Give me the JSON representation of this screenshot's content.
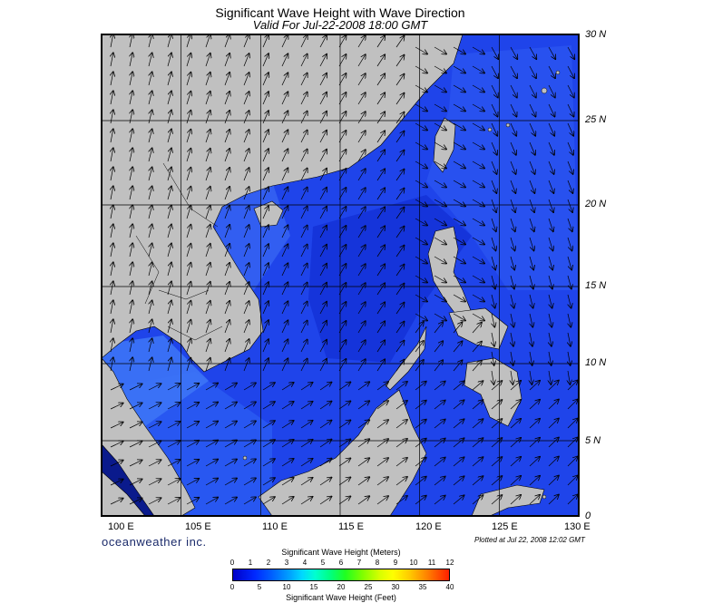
{
  "title": "Significant Wave Height with Wave Direction",
  "subtitle": "Valid For Jul-22-2008 18:00 GMT",
  "map": {
    "lat_labels": [
      "30 N",
      "25 N",
      "20 N",
      "15 N",
      "10 N",
      "5 N",
      "0"
    ],
    "lon_labels": [
      "100 E",
      "105 E",
      "110 E",
      "115 E",
      "120 E",
      "125 E",
      "130 E"
    ],
    "lat_range": [
      0,
      30
    ],
    "lon_range": [
      100,
      130
    ],
    "land_color": "#c0c0c0",
    "sea_color": "#1e3fe6",
    "grid_color": "#000000"
  },
  "brand": "oceanweather inc.",
  "plotted": "Plotted at Jul 22, 2008 12:02 GMT",
  "legend": {
    "meters_title": "Significant Wave Height (Meters)",
    "feet_title": "Significant Wave Height (Feet)",
    "meters_ticks": [
      "0",
      "1",
      "2",
      "3",
      "4",
      "5",
      "6",
      "7",
      "8",
      "9",
      "10",
      "11",
      "12"
    ],
    "feet_ticks": [
      "0",
      "5",
      "10",
      "15",
      "20",
      "25",
      "30",
      "35",
      "40"
    ]
  }
}
